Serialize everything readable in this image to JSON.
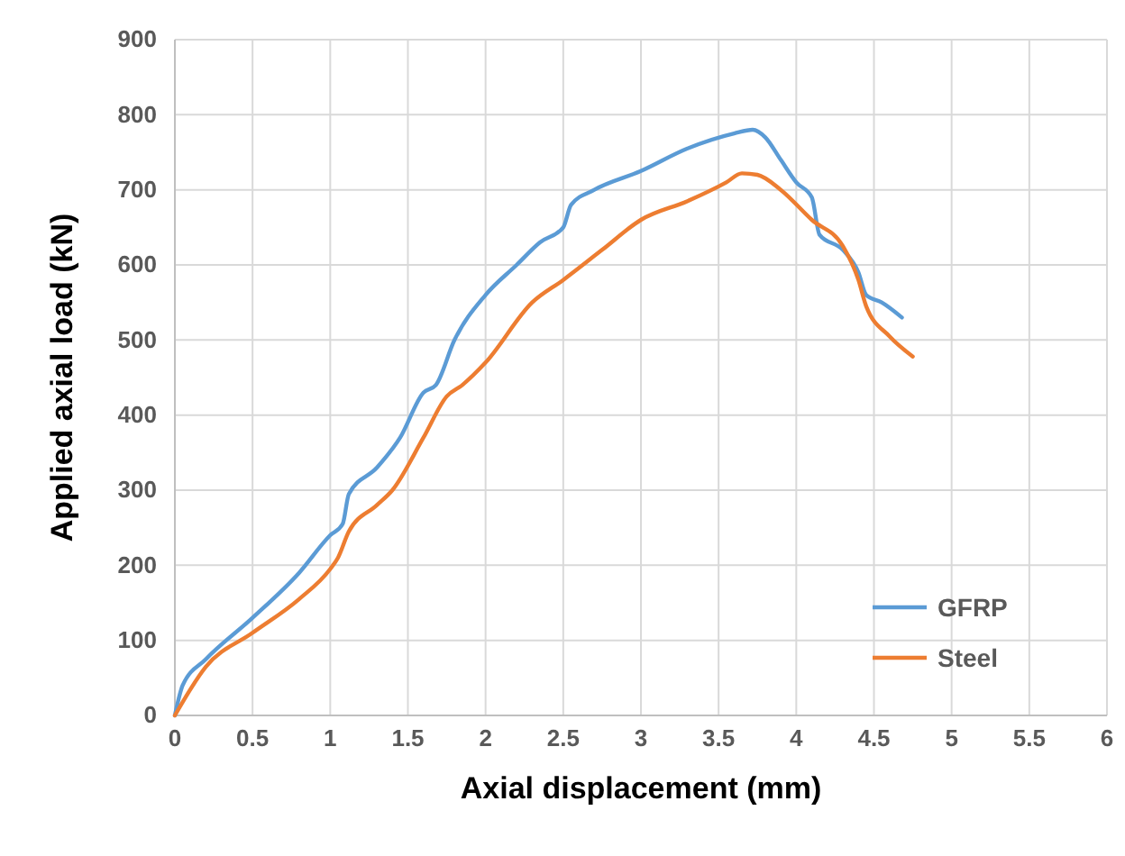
{
  "chart_data": {
    "type": "line",
    "xlabel": "Axial displacement (mm)",
    "ylabel": "Applied axial load (kN)",
    "xlim": [
      0,
      6
    ],
    "xticks": [
      0,
      0.5,
      1,
      1.5,
      2,
      2.5,
      3,
      3.5,
      4,
      4.5,
      5,
      5.5,
      6
    ],
    "ylim": [
      0,
      900
    ],
    "yticks": [
      0,
      100,
      200,
      300,
      400,
      500,
      600,
      700,
      800,
      900
    ],
    "grid": true,
    "legend": "bottom right",
    "marker": "none",
    "line_style": "solid",
    "series": [
      {
        "name": "GFRP",
        "color": "#5b9bd5",
        "x": [
          0,
          0.05,
          0.2,
          0.5,
          0.8,
          1.0,
          1.08,
          1.12,
          1.3,
          1.45,
          1.6,
          1.68,
          1.8,
          2.0,
          2.2,
          2.35,
          2.5,
          2.55,
          2.7,
          3.0,
          3.3,
          3.6,
          3.72,
          3.8,
          3.9,
          4.0,
          4.1,
          4.15,
          4.3,
          4.4,
          4.45,
          4.55,
          4.68
        ],
        "values": [
          0,
          40,
          75,
          130,
          190,
          240,
          255,
          295,
          330,
          370,
          430,
          440,
          500,
          560,
          600,
          630,
          650,
          680,
          700,
          725,
          755,
          775,
          780,
          770,
          740,
          710,
          690,
          640,
          620,
          590,
          560,
          550,
          530
        ]
      },
      {
        "name": "Steel",
        "color": "#ed7d31",
        "x": [
          0,
          0.2,
          0.5,
          0.8,
          1.0,
          1.05,
          1.12,
          1.3,
          1.4,
          1.6,
          1.75,
          1.85,
          2.0,
          2.3,
          2.5,
          2.75,
          3.0,
          3.3,
          3.55,
          3.65,
          3.75,
          3.9,
          4.1,
          4.3,
          4.4,
          4.45,
          4.6,
          4.75
        ],
        "values": [
          0,
          65,
          110,
          155,
          195,
          210,
          245,
          280,
          300,
          370,
          425,
          440,
          470,
          550,
          580,
          620,
          660,
          685,
          710,
          722,
          720,
          700,
          660,
          625,
          580,
          545,
          505,
          478
        ]
      }
    ]
  }
}
